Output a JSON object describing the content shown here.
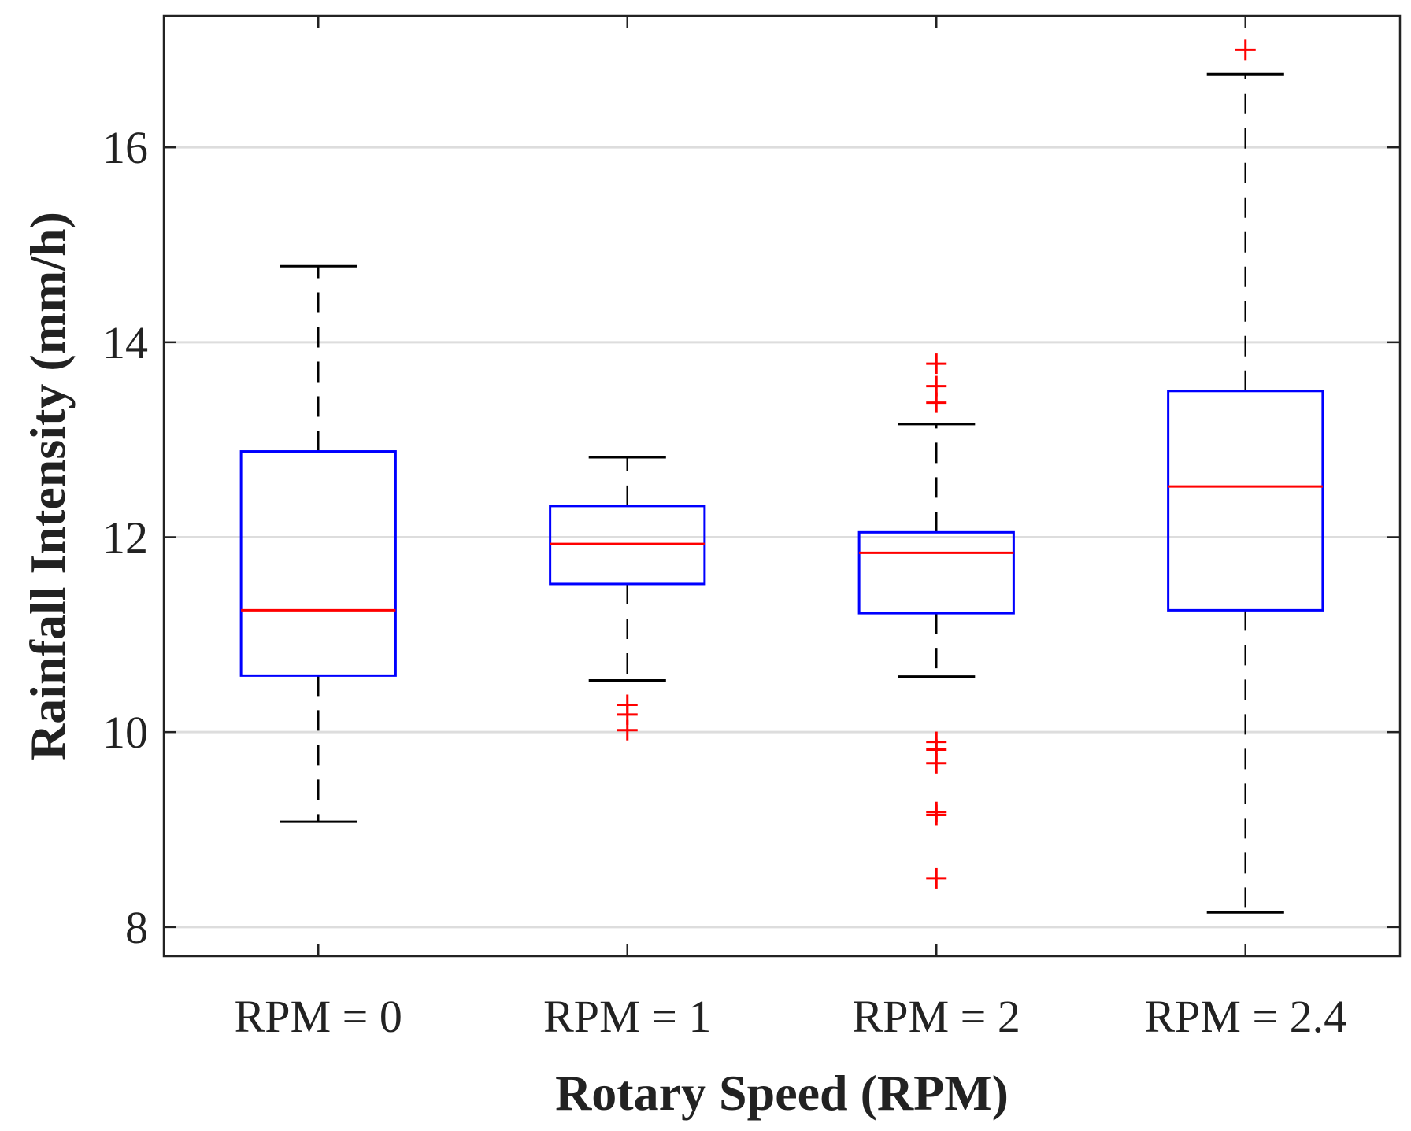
{
  "chart_data": {
    "type": "boxplot",
    "title": "",
    "xlabel": "Rotary Speed (RPM)",
    "ylabel": "Rainfall Intensity (mm/h)",
    "ylim": [
      7.7,
      17.35
    ],
    "yticks": [
      8,
      10,
      12,
      14,
      16
    ],
    "ytick_labels": [
      "8",
      "10",
      "12",
      "14",
      "16"
    ],
    "grid": "horizontal",
    "colors": {
      "box": "#0000ff",
      "median": "#ff0000",
      "whisker": "#000000",
      "outlier": "#ff0000",
      "grid": "#dddddd"
    },
    "categories": [
      "RPM = 0",
      "RPM = 1",
      "RPM = 2",
      "RPM = 2.4"
    ],
    "boxes": [
      {
        "label": "RPM = 0",
        "whisker_low": 9.08,
        "q1": 10.58,
        "median": 11.25,
        "q3": 12.88,
        "whisker_high": 14.78,
        "outliers": []
      },
      {
        "label": "RPM = 1",
        "whisker_low": 10.53,
        "q1": 11.52,
        "median": 11.93,
        "q3": 12.32,
        "whisker_high": 12.82,
        "outliers": [
          10.02,
          10.18,
          10.28
        ]
      },
      {
        "label": "RPM = 2",
        "whisker_low": 10.57,
        "q1": 11.22,
        "median": 11.84,
        "q3": 12.05,
        "whisker_high": 13.16,
        "outliers": [
          8.5,
          9.15,
          9.18,
          9.68,
          9.82,
          9.9,
          13.38,
          13.55,
          13.78
        ]
      },
      {
        "label": "RPM = 2.4",
        "whisker_low": 8.15,
        "q1": 11.25,
        "median": 12.52,
        "q3": 13.5,
        "whisker_high": 16.75,
        "outliers": [
          17.0
        ]
      }
    ]
  }
}
